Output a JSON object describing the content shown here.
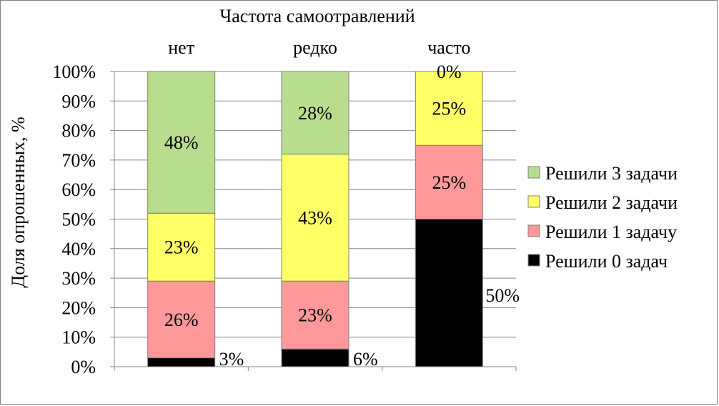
{
  "chart_data": {
    "type": "bar",
    "stacked": true,
    "normalized": true,
    "title": "Частота самоотравлений",
    "xlabel": "",
    "ylabel": "Доля опрошенных, %",
    "categories": [
      "нет",
      "редко",
      "часто"
    ],
    "ylim": [
      0,
      100
    ],
    "yticks": [
      "0%",
      "10%",
      "20%",
      "30%",
      "40%",
      "50%",
      "60%",
      "70%",
      "80%",
      "90%",
      "100%"
    ],
    "series": [
      {
        "name": "Решили 0 задач",
        "color": "#000000",
        "values": [
          3,
          6,
          50
        ],
        "labels": [
          "3%",
          "6%",
          "50%"
        ]
      },
      {
        "name": "Решили 1 задачу",
        "color": "#ff9999",
        "values": [
          26,
          23,
          25
        ],
        "labels": [
          "26%",
          "23%",
          "25%"
        ]
      },
      {
        "name": "Решили 2 задачи",
        "color": "#ffff66",
        "values": [
          23,
          43,
          25
        ],
        "labels": [
          "23%",
          "43%",
          "25%"
        ]
      },
      {
        "name": "Решили 3 задачи",
        "color": "#b9dd8f",
        "values": [
          48,
          28,
          0
        ],
        "labels": [
          "48%",
          "28%",
          "0%"
        ]
      }
    ],
    "legend_position": "right",
    "legend_order": [
      "Решили 3 задачи",
      "Решили 2 задачи",
      "Решили 1 задачу",
      "Решили 0 задач"
    ],
    "grid": true
  }
}
